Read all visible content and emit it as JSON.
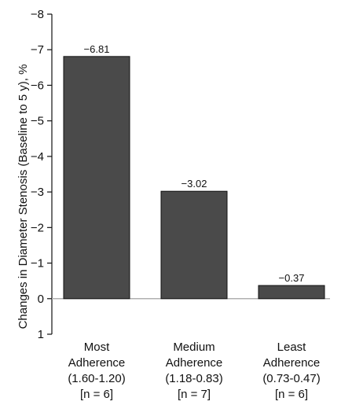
{
  "chart_data": {
    "type": "bar",
    "title": "",
    "ylabel": "Changes in Diameter Stenosis (Baseline to 5 y), %",
    "xlabel": "",
    "ylim": [
      1,
      -8
    ],
    "yticks": [
      "−8",
      "−7",
      "−6",
      "−5",
      "−4",
      "−3",
      "−2",
      "−1",
      "0",
      "1"
    ],
    "ytick_values": [
      -8,
      -7,
      -6,
      -5,
      -4,
      -3,
      -2,
      -1,
      0,
      1
    ],
    "categories": [
      [
        "Most",
        "Adherence",
        "(1.60-1.20)",
        "[n = 6]"
      ],
      [
        "Medium",
        "Adherence",
        "(1.18-0.83)",
        "[n = 7]"
      ],
      [
        "Least",
        "Adherence",
        "(0.73-0.47)",
        "[n = 6]"
      ]
    ],
    "values": [
      -6.81,
      -3.02,
      -0.37
    ],
    "data_labels": [
      "−6.81",
      "−3.02",
      "−0.37"
    ],
    "bar_color": "#4a4a4a",
    "bar_stroke": "#111111",
    "zero_line_color": "#b0b0b0",
    "grid": false,
    "legend": "none"
  }
}
